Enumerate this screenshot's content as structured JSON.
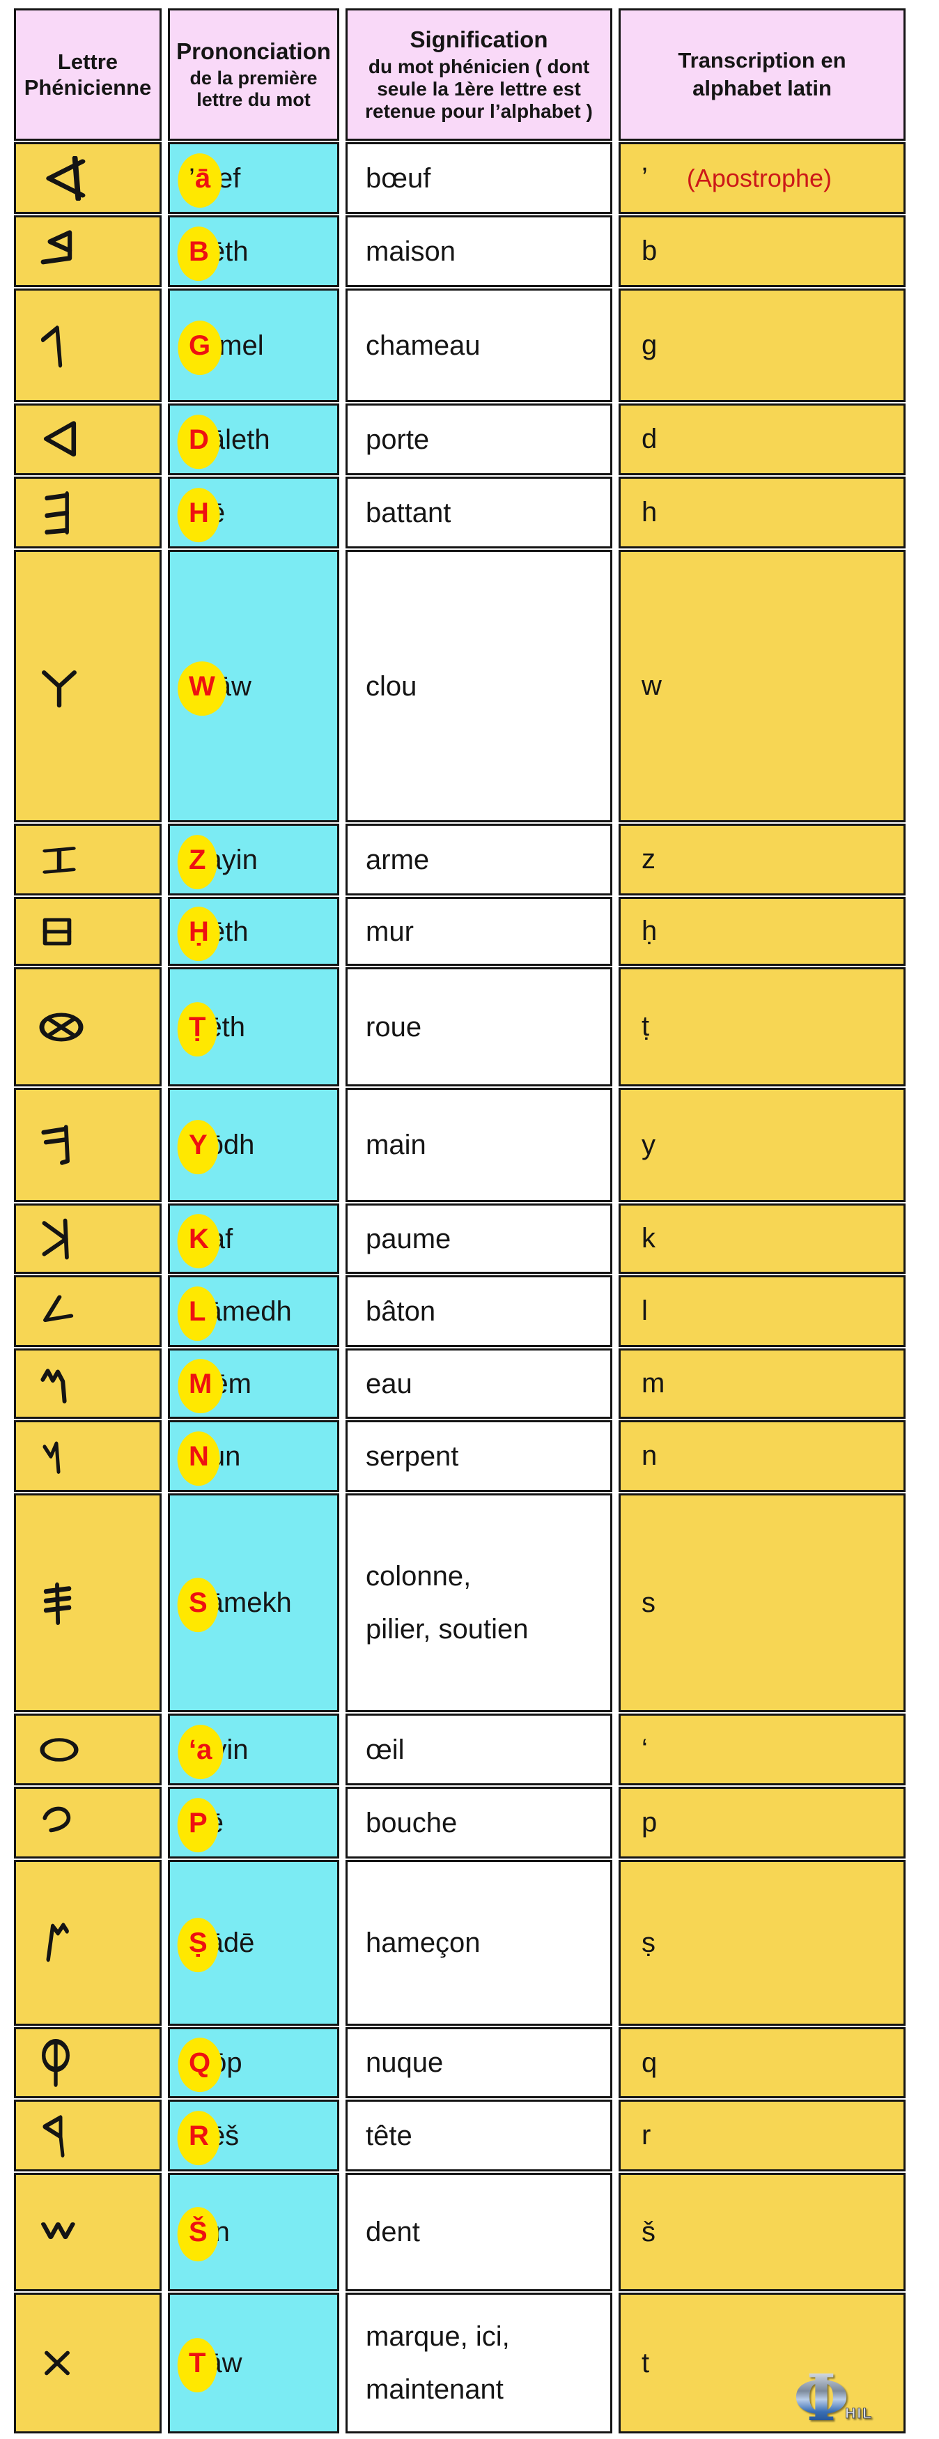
{
  "table": {
    "headers": {
      "letter": {
        "title": "Lettre Phénicienne"
      },
      "pronunciation": {
        "title": "Prononciation",
        "subtitle": "de la première lettre du mot"
      },
      "meaning": {
        "title": "Signification",
        "subtitle": "du mot phénicien ( dont seule la 1ère lettre est retenue pour l’alphabet )"
      },
      "transcription": {
        "title": "Transcription en alphabet latin"
      }
    },
    "rows": [
      {
        "letter": "aleph",
        "pron_pre": "’",
        "pron_red": "ā",
        "pron_rest": "lef",
        "meaning": "bœuf",
        "latin": "’",
        "note": "(Apostrophe)"
      },
      {
        "letter": "beth",
        "pron_pre": "",
        "pron_red": "B",
        "pron_rest": "ēth",
        "meaning": "maison",
        "latin": "b"
      },
      {
        "letter": "gimel",
        "pron_pre": "",
        "pron_red": "G",
        "pron_rest": "īmel",
        "meaning": "chameau",
        "latin": "g"
      },
      {
        "letter": "daleth",
        "pron_pre": "",
        "pron_red": "D",
        "pron_rest": "āleth",
        "meaning": "porte",
        "latin": "d"
      },
      {
        "letter": "he",
        "pron_pre": "",
        "pron_red": "H",
        "pron_rest": "ē",
        "meaning": "battant",
        "latin": "h"
      },
      {
        "letter": "waw",
        "pron_pre": "",
        "pron_red": "W",
        "pron_rest": "āw",
        "meaning": "clou",
        "latin": "w"
      },
      {
        "letter": "zayin",
        "pron_pre": "",
        "pron_red": "Z",
        "pron_rest": "ayin",
        "meaning": "arme",
        "latin": "z"
      },
      {
        "letter": "heth",
        "pron_pre": "",
        "pron_red": "Ḥ",
        "pron_rest": "ēth",
        "meaning": "mur",
        "latin": "ḥ"
      },
      {
        "letter": "teth",
        "pron_pre": "",
        "pron_red": "Ṭ",
        "pron_rest": "ēth",
        "meaning": "roue",
        "latin": "ṭ"
      },
      {
        "letter": "yodh",
        "pron_pre": "",
        "pron_red": "Y",
        "pron_rest": "ōdh",
        "meaning": "main",
        "latin": "y"
      },
      {
        "letter": "kaf",
        "pron_pre": "",
        "pron_red": "K",
        "pron_rest": "af",
        "meaning": "paume",
        "latin": "k"
      },
      {
        "letter": "lamedh",
        "pron_pre": "",
        "pron_red": "L",
        "pron_rest": "āmedh",
        "meaning": "bâton",
        "latin": "l"
      },
      {
        "letter": "mem",
        "pron_pre": "",
        "pron_red": "M",
        "pron_rest": "ēm",
        "meaning": "eau",
        "latin": "m"
      },
      {
        "letter": "nun",
        "pron_pre": "",
        "pron_red": "N",
        "pron_rest": "un",
        "meaning": "serpent",
        "latin": "n"
      },
      {
        "letter": "samekh",
        "pron_pre": "",
        "pron_red": "S",
        "pron_rest": "āmekh",
        "meaning": "colonne,\npilier, soutien",
        "latin": "s"
      },
      {
        "letter": "ayin",
        "pron_pre": "",
        "pron_red": "‘a",
        "pron_rest": "yin",
        "meaning": "œil",
        "latin": "‘"
      },
      {
        "letter": "pe",
        "pron_pre": "",
        "pron_red": "P",
        "pron_rest": "ē",
        "meaning": "bouche",
        "latin": "p"
      },
      {
        "letter": "sade",
        "pron_pre": "",
        "pron_red": "Ṣ",
        "pron_rest": "ādē",
        "meaning": "hameçon",
        "latin": "ṣ"
      },
      {
        "letter": "qop",
        "pron_pre": "",
        "pron_red": "Q",
        "pron_rest": "ōp",
        "meaning": "nuque",
        "latin": "q"
      },
      {
        "letter": "resh",
        "pron_pre": "",
        "pron_red": "R",
        "pron_rest": "ēš",
        "meaning": "tête",
        "latin": "r"
      },
      {
        "letter": "shin",
        "pron_pre": "",
        "pron_red": "Š",
        "pron_rest": "in",
        "meaning": "dent",
        "latin": "š"
      },
      {
        "letter": "taw",
        "pron_pre": "",
        "pron_red": "T",
        "pron_rest": "āw",
        "meaning": "marque, ici,\nmaintenant",
        "latin": "t"
      }
    ]
  },
  "watermark": {
    "symbol": "Φ",
    "text": "HIL"
  },
  "colors": {
    "header_bg": "#F9D9F8",
    "letter_column_bg": "#F7D654",
    "pronunciation_column_bg": "#7BEBF3",
    "meaning_column_bg": "#FFFFFF",
    "transcription_column_bg": "#F7D654",
    "highlight_bubble": "#FFE800",
    "initial_letter_red": "#EE1111",
    "apostrophe_note_red": "#CC1818",
    "border": "#141414"
  }
}
